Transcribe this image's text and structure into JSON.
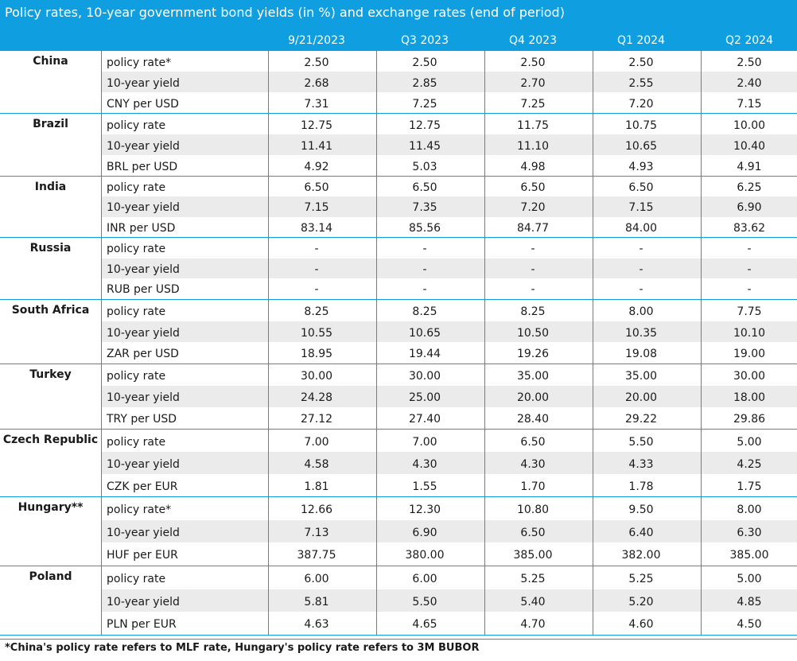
{
  "title": "Policy rates, 10-year government bond yields (in %) and exchange rates (end of period)",
  "columns": [
    "9/21/2023",
    "Q3 2023",
    "Q4 2023",
    "Q1 2024",
    "Q2 2024"
  ],
  "footnote": "*China's policy rate refers to MLF rate, Hungary's policy rate refers to 3M BUBOR",
  "colors": {
    "header_bg": "#0f9ee0",
    "header_text": "#ffffff",
    "row_shade": "#ebebeb"
  },
  "chart_data": {
    "type": "table",
    "title": "Policy rates, 10-year government bond yields (in %) and exchange rates (end of period)",
    "columns": [
      "9/21/2023",
      "Q3 2023",
      "Q4 2023",
      "Q1 2024",
      "Q2 2024"
    ],
    "groups": [
      {
        "country": "China",
        "rows": [
          {
            "metric": "policy rate*",
            "values": [
              "2.50",
              "2.50",
              "2.50",
              "2.50",
              "2.50"
            ]
          },
          {
            "metric": "10-year yield",
            "values": [
              "2.68",
              "2.85",
              "2.70",
              "2.55",
              "2.40"
            ]
          },
          {
            "metric": "CNY per USD",
            "values": [
              "7.31",
              "7.25",
              "7.25",
              "7.20",
              "7.15"
            ]
          }
        ]
      },
      {
        "country": "Brazil",
        "rows": [
          {
            "metric": "policy rate",
            "values": [
              "12.75",
              "12.75",
              "11.75",
              "10.75",
              "10.00"
            ]
          },
          {
            "metric": "10-year yield",
            "values": [
              "11.41",
              "11.45",
              "11.10",
              "10.65",
              "10.40"
            ]
          },
          {
            "metric": "BRL per USD",
            "values": [
              "4.92",
              "5.03",
              "4.98",
              "4.93",
              "4.91"
            ]
          }
        ]
      },
      {
        "country": "India",
        "rows": [
          {
            "metric": "policy rate",
            "values": [
              "6.50",
              "6.50",
              "6.50",
              "6.50",
              "6.25"
            ]
          },
          {
            "metric": "10-year yield",
            "values": [
              "7.15",
              "7.35",
              "7.20",
              "7.15",
              "6.90"
            ]
          },
          {
            "metric": "INR per USD",
            "values": [
              "83.14",
              "85.56",
              "84.77",
              "84.00",
              "83.62"
            ]
          }
        ]
      },
      {
        "country": "Russia",
        "rows": [
          {
            "metric": "policy rate",
            "values": [
              "-",
              "-",
              "-",
              "-",
              "-"
            ]
          },
          {
            "metric": "10-year yield",
            "values": [
              "-",
              "-",
              "-",
              "-",
              "-"
            ]
          },
          {
            "metric": "RUB per USD",
            "values": [
              "-",
              "-",
              "-",
              "-",
              "-"
            ]
          }
        ]
      },
      {
        "country": "South Africa",
        "rows": [
          {
            "metric": "policy rate",
            "values": [
              "8.25",
              "8.25",
              "8.25",
              "8.00",
              "7.75"
            ]
          },
          {
            "metric": "10-year yield",
            "values": [
              "10.55",
              "10.65",
              "10.50",
              "10.35",
              "10.10"
            ]
          },
          {
            "metric": "ZAR per USD",
            "values": [
              "18.95",
              "19.44",
              "19.26",
              "19.08",
              "19.00"
            ]
          }
        ]
      },
      {
        "country": "Turkey",
        "rows": [
          {
            "metric": "policy rate",
            "values": [
              "30.00",
              "30.00",
              "35.00",
              "35.00",
              "30.00"
            ]
          },
          {
            "metric": "10-year yield",
            "values": [
              "24.28",
              "25.00",
              "20.00",
              "20.00",
              "18.00"
            ]
          },
          {
            "metric": "TRY per USD",
            "values": [
              "27.12",
              "27.40",
              "28.40",
              "29.22",
              "29.86"
            ]
          }
        ]
      },
      {
        "country": "Czech Republic",
        "rows": [
          {
            "metric": "policy rate",
            "values": [
              "7.00",
              "7.00",
              "6.50",
              "5.50",
              "5.00"
            ]
          },
          {
            "metric": "10-year yield",
            "values": [
              "4.58",
              "4.30",
              "4.30",
              "4.33",
              "4.25"
            ]
          },
          {
            "metric": "CZK per EUR",
            "values": [
              "1.81",
              "1.55",
              "1.70",
              "1.78",
              "1.75"
            ]
          }
        ]
      },
      {
        "country": "Hungary**",
        "rows": [
          {
            "metric": "policy rate*",
            "values": [
              "12.66",
              "12.30",
              "10.80",
              "9.50",
              "8.00"
            ]
          },
          {
            "metric": "10-year yield",
            "values": [
              "7.13",
              "6.90",
              "6.50",
              "6.40",
              "6.30"
            ]
          },
          {
            "metric": "HUF per EUR",
            "values": [
              "387.75",
              "380.00",
              "385.00",
              "382.00",
              "385.00"
            ]
          }
        ]
      },
      {
        "country": "Poland",
        "rows": [
          {
            "metric": "policy rate",
            "values": [
              "6.00",
              "6.00",
              "5.25",
              "5.25",
              "5.00"
            ]
          },
          {
            "metric": "10-year yield",
            "values": [
              "5.81",
              "5.50",
              "5.40",
              "5.20",
              "4.85"
            ]
          },
          {
            "metric": "PLN per EUR",
            "values": [
              "4.63",
              "4.65",
              "4.70",
              "4.60",
              "4.50"
            ]
          }
        ]
      }
    ]
  }
}
